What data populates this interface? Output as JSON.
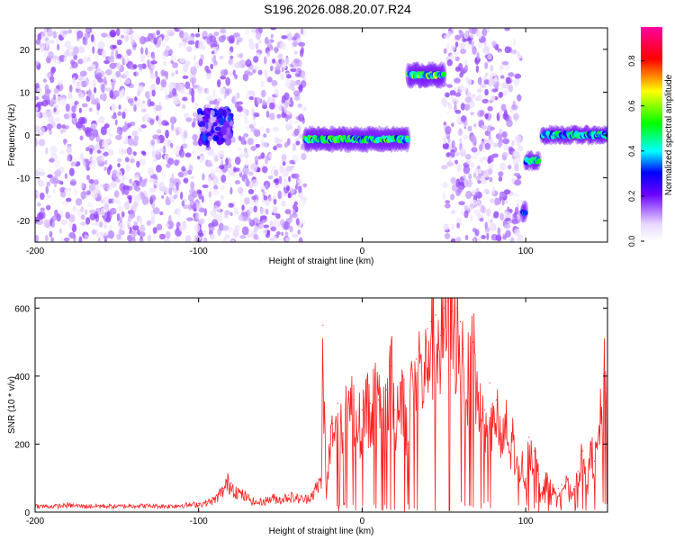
{
  "title": "S196.2026.088.20.07.R24",
  "chart_data": [
    {
      "type": "heatmap",
      "xlabel": "Height of straight line (km)",
      "ylabel": "Frequency (Hz)",
      "xlim": [
        -200,
        150
      ],
      "ylim": [
        -25,
        25
      ],
      "xticks": [
        -200,
        -100,
        0,
        100
      ],
      "yticks": [
        20,
        10,
        0,
        -10,
        -20
      ],
      "colorbar": {
        "label": "Normalized spectral amplitude",
        "ticks": [
          0.0,
          0.2,
          0.4,
          0.6,
          0.8
        ],
        "range": [
          0,
          0.95
        ]
      },
      "features": [
        {
          "x_start": -200,
          "x_end": -35,
          "freq_center": 0,
          "freq_spread": 25,
          "amplitude": 0.1,
          "kind": "noise"
        },
        {
          "x_start": -100,
          "x_end": -80,
          "freq_center": 2,
          "freq_spread": 4,
          "amplitude": 0.2,
          "kind": "cluster"
        },
        {
          "x_start": -35,
          "x_end": 28,
          "freq_center": -1,
          "freq_spread": 2,
          "amplitude": 0.4,
          "kind": "line"
        },
        {
          "x_start": 28,
          "x_end": 50,
          "freq_center": 14,
          "freq_spread": 2,
          "amplitude": 0.45,
          "kind": "line"
        },
        {
          "x_start": 50,
          "x_end": 97,
          "freq_center": 0,
          "freq_spread": 25,
          "amplitude": 0.1,
          "kind": "noise"
        },
        {
          "x_start": 98,
          "x_end": 100,
          "freq_center": -18,
          "freq_spread": 1.5,
          "amplitude": 0.3,
          "kind": "blob"
        },
        {
          "x_start": 100,
          "x_end": 108,
          "freq_center": -6,
          "freq_spread": 1.2,
          "amplitude": 0.35,
          "kind": "line"
        },
        {
          "x_start": 110,
          "x_end": 150,
          "freq_center": 0,
          "freq_spread": 1.2,
          "amplitude": 0.35,
          "kind": "line"
        }
      ]
    },
    {
      "type": "line",
      "xlabel": "Height of straight line (km)",
      "ylabel": "SNR (10 * v/v)",
      "xlim": [
        -200,
        150
      ],
      "ylim": [
        0,
        630
      ],
      "xticks": [
        -200,
        -100,
        0,
        100
      ],
      "yticks": [
        0,
        200,
        400,
        600
      ],
      "series": [
        {
          "name": "SNR",
          "color": "#ff2020",
          "x": [
            -200,
            -190,
            -180,
            -170,
            -160,
            -150,
            -140,
            -130,
            -120,
            -110,
            -100,
            -95,
            -90,
            -85,
            -82,
            -80,
            -75,
            -70,
            -65,
            -60,
            -55,
            -50,
            -45,
            -40,
            -35,
            -30,
            -25,
            -24,
            -22,
            -20,
            -18,
            -15,
            -12,
            -10,
            -8,
            -5,
            -2,
            0,
            2,
            5,
            8,
            10,
            12,
            15,
            18,
            20,
            23,
            25,
            28,
            30,
            33,
            35,
            38,
            40,
            42,
            45,
            48,
            50,
            52,
            55,
            58,
            60,
            62,
            65,
            68,
            70,
            72,
            75,
            78,
            80,
            82,
            85,
            88,
            90,
            92,
            95,
            98,
            100,
            102,
            105,
            108,
            110,
            112,
            115,
            118,
            120,
            122,
            125,
            128,
            130,
            132,
            135,
            138,
            140,
            142,
            145,
            148,
            150
          ],
          "values": [
            20,
            18,
            22,
            19,
            20,
            18,
            21,
            20,
            19,
            22,
            25,
            30,
            40,
            70,
            95,
            85,
            60,
            45,
            30,
            35,
            45,
            40,
            50,
            45,
            40,
            60,
            100,
            550,
            40,
            200,
            260,
            320,
            230,
            300,
            350,
            330,
            280,
            300,
            350,
            320,
            380,
            330,
            300,
            360,
            430,
            300,
            380,
            400,
            200,
            420,
            450,
            480,
            400,
            540,
            560,
            580,
            520,
            600,
            620,
            590,
            600,
            560,
            480,
            420,
            500,
            380,
            350,
            300,
            380,
            250,
            330,
            200,
            280,
            180,
            240,
            130,
            150,
            100,
            220,
            180,
            110,
            60,
            100,
            80,
            60,
            70,
            80,
            90,
            60,
            75,
            120,
            180,
            90,
            200,
            150,
            250,
            420,
            300
          ]
        }
      ]
    }
  ]
}
